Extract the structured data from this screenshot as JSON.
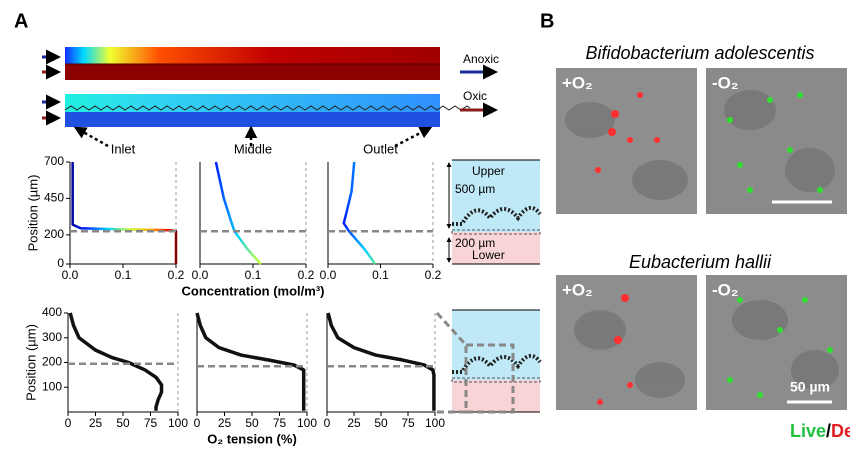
{
  "panels": {
    "a": "A",
    "b": "B"
  },
  "simulation": {
    "anoxic": "Anoxic",
    "oxic": "Oxic"
  },
  "schematic": {
    "upper": "Upper",
    "lower": "Lower",
    "upper_height": "500 µm",
    "lower_height": "200 µm"
  },
  "microscopy": {
    "title_1": "Bifidobacterium adolescentis",
    "title_2": "Eubacterium hallii",
    "plus": "+O₂",
    "minus": "-O₂",
    "scale": "50 µm",
    "live": "Live",
    "slash": "/",
    "dead": "Dead"
  },
  "chart_data": [
    {
      "type": "line",
      "title": "Inlet",
      "ylabel": "Position (µm)",
      "colormap": "jet",
      "xlim": [
        0,
        0.2
      ],
      "xticks": [
        {
          "value": 0,
          "label": "0.0"
        },
        0.1,
        0.2
      ],
      "ylim": [
        0,
        700
      ],
      "yticks": [
        0,
        200,
        450,
        700
      ],
      "hline": 225,
      "series": [
        {
          "x": [
            0.005,
            0.005,
            0.02,
            0.1,
            0.19,
            0.2,
            0.2
          ],
          "values": [
            700,
            270,
            245,
            238,
            232,
            225,
            0
          ]
        }
      ]
    },
    {
      "type": "line",
      "title": "Middle",
      "xlabel": "Concentration (mol/m³)",
      "colormap": "jet",
      "xlim": [
        0,
        0.2
      ],
      "xticks": [
        {
          "value": 0,
          "label": "0.0"
        },
        0.1,
        0.2
      ],
      "ylim": [
        0,
        700
      ],
      "hline": 225,
      "series": [
        {
          "x": [
            0.03,
            0.045,
            0.058,
            0.065,
            0.09,
            0.115
          ],
          "values": [
            700,
            450,
            300,
            225,
            100,
            0
          ]
        }
      ]
    },
    {
      "type": "line",
      "title": "Outlet",
      "colormap": "jet",
      "xlim": [
        0,
        0.2
      ],
      "xticks": [
        {
          "value": 0,
          "label": "0.0"
        },
        0.1,
        0.2
      ],
      "ylim": [
        0,
        700
      ],
      "hline": 225,
      "series": [
        {
          "x": [
            0.05,
            0.045,
            0.035,
            0.03,
            0.04,
            0.07,
            0.09
          ],
          "values": [
            700,
            500,
            350,
            280,
            225,
            100,
            0
          ]
        }
      ]
    },
    {
      "type": "line",
      "ylabel": "Position (µm)",
      "xlim": [
        0,
        100
      ],
      "xticks": [
        0,
        25,
        50,
        75,
        100
      ],
      "ylim": [
        0,
        400
      ],
      "yticks": [
        100,
        200,
        300,
        400
      ],
      "hline": 195,
      "series": [
        {
          "color": "#111111",
          "x": [
            2,
            5,
            10,
            25,
            40,
            55,
            70,
            80,
            85,
            85,
            82,
            80,
            80
          ],
          "values": [
            400,
            350,
            300,
            250,
            220,
            200,
            170,
            140,
            110,
            80,
            50,
            20,
            5
          ]
        }
      ]
    },
    {
      "type": "line",
      "xlabel": "O₂ tension (%)",
      "xlim": [
        0,
        100
      ],
      "xticks": [
        0,
        25,
        50,
        75,
        100
      ],
      "ylim": [
        0,
        400
      ],
      "hline": 185,
      "series": [
        {
          "color": "#111111",
          "x": [
            0,
            3,
            8,
            20,
            40,
            65,
            88,
            97,
            97,
            97,
            97,
            97,
            97
          ],
          "values": [
            400,
            350,
            300,
            260,
            230,
            210,
            190,
            170,
            150,
            110,
            70,
            30,
            5
          ]
        }
      ]
    },
    {
      "type": "line",
      "xlim": [
        0,
        100
      ],
      "xticks": [
        0,
        25,
        50,
        75,
        100
      ],
      "ylim": [
        0,
        400
      ],
      "hline": 185,
      "series": [
        {
          "color": "#111111",
          "x": [
            1,
            4,
            10,
            25,
            45,
            70,
            90,
            98,
            99,
            99,
            99,
            99,
            99
          ],
          "values": [
            400,
            350,
            300,
            260,
            230,
            210,
            190,
            170,
            150,
            110,
            70,
            30,
            5
          ]
        }
      ]
    }
  ]
}
